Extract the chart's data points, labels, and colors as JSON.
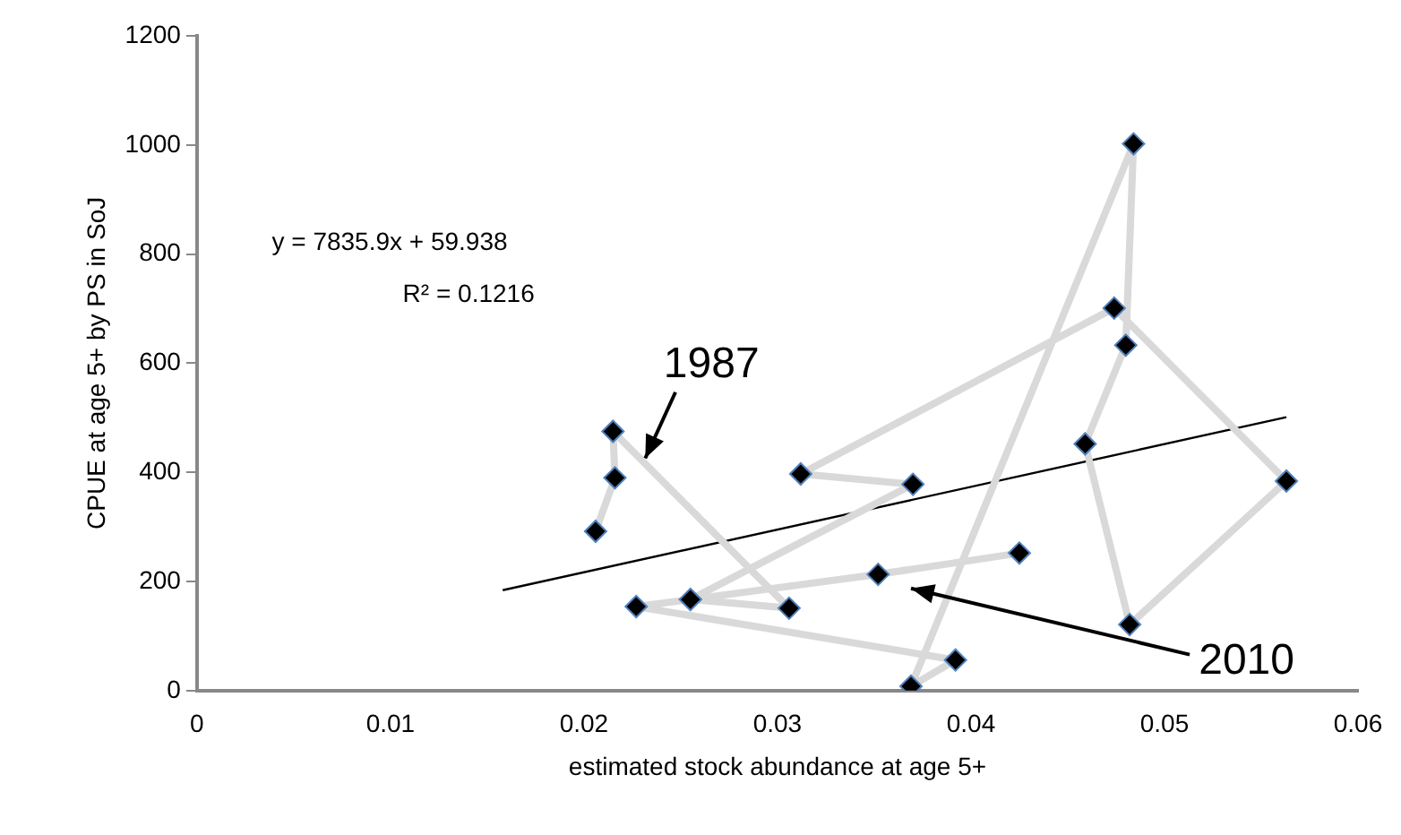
{
  "chart_data": {
    "type": "line",
    "xlabel": "estimated stock abundance at age 5+",
    "ylabel": "CPUE at age 5+ by PS in SoJ",
    "xlim": [
      0,
      0.06
    ],
    "xticks": [
      0,
      0.01,
      0.02,
      0.03,
      0.04,
      0.05,
      0.06
    ],
    "ylim": [
      0,
      1200
    ],
    "yticks": [
      0,
      200,
      400,
      600,
      800,
      1000,
      1200
    ],
    "grid": false,
    "legend": false,
    "series": [
      {
        "type": "line",
        "color": "#d9d9d9",
        "marker": "diamond",
        "x": [
          0.0206,
          0.0216,
          0.0215,
          0.0306,
          0.0255,
          0.0227,
          0.0392,
          0.0369,
          0.0484,
          0.048,
          0.0459,
          0.0482,
          0.0563,
          0.0474,
          0.0312,
          0.037,
          0.0255,
          0.0352,
          0.0425
        ],
        "values": [
          292,
          390,
          475,
          151,
          167,
          154,
          56,
          8,
          1002,
          633,
          452,
          121,
          384,
          701,
          397,
          378,
          167,
          213,
          252
        ]
      },
      {
        "type": "line",
        "color": "#000000",
        "marker": "none",
        "x": [
          0.0158,
          0.0563
        ],
        "values": [
          184,
          501
        ]
      }
    ],
    "annotations": [
      "y = 7835.9x + 59.938",
      "R² = 0.1216",
      {
        "text": "1987",
        "x": 0.0215,
        "y": 475
      },
      "2010"
    ]
  }
}
